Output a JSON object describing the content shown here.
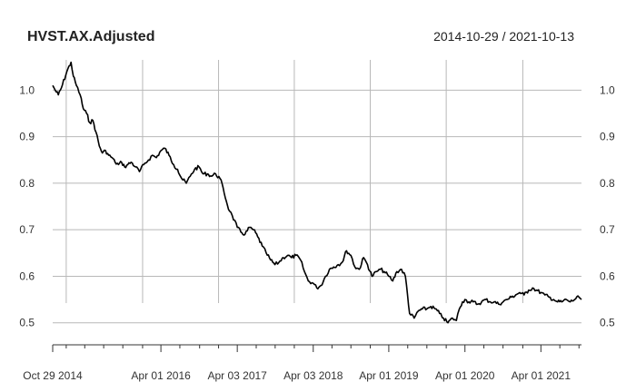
{
  "chart_data": {
    "type": "line",
    "title": "HVST.AX.Adjusted",
    "date_range": "2014-10-29 / 2021-10-13",
    "x_start": "2014-10-29",
    "x_end": "2021-10-13",
    "x_tick_labels": [
      {
        "date": "2014-10-29",
        "label": "Oct 29 2014"
      },
      {
        "date": "2016-04-01",
        "label": "Apr 01 2016"
      },
      {
        "date": "2017-04-03",
        "label": "Apr 03 2017"
      },
      {
        "date": "2018-04-03",
        "label": "Apr 03 2018"
      },
      {
        "date": "2019-04-01",
        "label": "Apr 01 2019"
      },
      {
        "date": "2020-04-01",
        "label": "Apr 01 2020"
      },
      {
        "date": "2021-04-01",
        "label": "Apr 01 2021"
      }
    ],
    "x_minor_ticks": [
      "2015-01-02",
      "2015-04-01",
      "2015-07-01",
      "2015-10-01",
      "2016-01-04",
      "2016-07-01",
      "2016-10-04",
      "2017-01-03",
      "2017-07-03",
      "2017-10-02",
      "2018-01-02",
      "2018-07-02",
      "2018-10-01",
      "2019-01-02",
      "2019-07-01",
      "2019-10-01",
      "2020-01-02",
      "2020-07-01",
      "2020-10-01",
      "2021-01-04",
      "2021-07-01",
      "2021-10-01"
    ],
    "x_grid": [
      "2015-01-02",
      "2016-01-04",
      "2017-01-03",
      "2018-01-02",
      "2019-01-02",
      "2020-01-02",
      "2021-01-04"
    ],
    "y_ticks": [
      "0.5",
      "0.6",
      "0.7",
      "0.8",
      "0.9",
      "1.0"
    ],
    "ylim": [
      0.48,
      1.065
    ],
    "grid": true,
    "series": [
      {
        "color": "#000000",
        "x": [
          "2014-10-29",
          "2014-11-10",
          "2014-11-25",
          "2014-12-10",
          "2015-01-05",
          "2015-01-25",
          "2015-02-05",
          "2015-02-20",
          "2015-03-10",
          "2015-03-25",
          "2015-04-10",
          "2015-04-25",
          "2015-05-10",
          "2015-05-25",
          "2015-06-10",
          "2015-06-25",
          "2015-07-10",
          "2015-07-25",
          "2015-08-10",
          "2015-08-25",
          "2015-09-10",
          "2015-09-25",
          "2015-10-10",
          "2015-10-25",
          "2015-11-10",
          "2015-12-01",
          "2015-12-20",
          "2016-01-10",
          "2016-02-01",
          "2016-02-20",
          "2016-03-10",
          "2016-04-01",
          "2016-04-20",
          "2016-05-10",
          "2016-06-01",
          "2016-06-20",
          "2016-07-10",
          "2016-08-01",
          "2016-08-20",
          "2016-09-10",
          "2016-10-01",
          "2016-10-20",
          "2016-11-10",
          "2016-12-01",
          "2016-12-20",
          "2017-01-10",
          "2017-01-25",
          "2017-02-10",
          "2017-02-25",
          "2017-03-10",
          "2017-04-03",
          "2017-04-20",
          "2017-05-10",
          "2017-06-01",
          "2017-06-20",
          "2017-07-10",
          "2017-08-01",
          "2017-08-20",
          "2017-09-10",
          "2017-10-01",
          "2017-10-20",
          "2017-11-10",
          "2017-12-01",
          "2017-12-20",
          "2018-01-10",
          "2018-02-01",
          "2018-02-20",
          "2018-03-10",
          "2018-04-03",
          "2018-04-20",
          "2018-05-10",
          "2018-06-01",
          "2018-06-20",
          "2018-07-10",
          "2018-08-01",
          "2018-08-20",
          "2018-09-10",
          "2018-10-01",
          "2018-10-20",
          "2018-11-10",
          "2018-12-01",
          "2018-12-20",
          "2019-01-10",
          "2019-02-01",
          "2019-02-20",
          "2019-03-10",
          "2019-04-01",
          "2019-04-20",
          "2019-05-10",
          "2019-06-01",
          "2019-06-20",
          "2019-07-10",
          "2019-08-01",
          "2019-08-20",
          "2019-09-10",
          "2019-10-01",
          "2019-10-20",
          "2019-11-10",
          "2019-12-01",
          "2019-12-20",
          "2020-01-10",
          "2020-02-01",
          "2020-02-20",
          "2020-03-05",
          "2020-03-20",
          "2020-04-01",
          "2020-04-20",
          "2020-05-10",
          "2020-06-01",
          "2020-06-20",
          "2020-07-10",
          "2020-08-01",
          "2020-08-20",
          "2020-09-10",
          "2020-10-01",
          "2020-10-20",
          "2020-11-10",
          "2020-12-01",
          "2020-12-20",
          "2021-01-10",
          "2021-02-01",
          "2021-02-20",
          "2021-03-10",
          "2021-04-01",
          "2021-04-20",
          "2021-05-10",
          "2021-06-01",
          "2021-06-20",
          "2021-07-10",
          "2021-08-01",
          "2021-08-20",
          "2021-09-10",
          "2021-10-01",
          "2021-10-13"
        ],
        "values": [
          1.01,
          1.0,
          0.99,
          1.005,
          1.04,
          1.06,
          1.03,
          1.01,
          0.99,
          0.96,
          0.95,
          0.93,
          0.935,
          0.91,
          0.88,
          0.865,
          0.87,
          0.86,
          0.855,
          0.845,
          0.84,
          0.845,
          0.835,
          0.84,
          0.845,
          0.835,
          0.825,
          0.84,
          0.85,
          0.86,
          0.855,
          0.87,
          0.875,
          0.86,
          0.84,
          0.83,
          0.81,
          0.8,
          0.815,
          0.83,
          0.835,
          0.82,
          0.82,
          0.815,
          0.82,
          0.81,
          0.79,
          0.76,
          0.74,
          0.73,
          0.705,
          0.695,
          0.69,
          0.705,
          0.7,
          0.685,
          0.665,
          0.65,
          0.635,
          0.625,
          0.63,
          0.64,
          0.645,
          0.64,
          0.645,
          0.635,
          0.61,
          0.59,
          0.585,
          0.575,
          0.58,
          0.6,
          0.615,
          0.62,
          0.625,
          0.63,
          0.655,
          0.645,
          0.62,
          0.615,
          0.64,
          0.625,
          0.6,
          0.61,
          0.615,
          0.61,
          0.6,
          0.59,
          0.61,
          0.615,
          0.6,
          0.52,
          0.51,
          0.525,
          0.53,
          0.53,
          0.535,
          0.53,
          0.52,
          0.51,
          0.5,
          0.51,
          0.505,
          0.53,
          0.545,
          0.55,
          0.545,
          0.545,
          0.54,
          0.545,
          0.55,
          0.545,
          0.545,
          0.54,
          0.545,
          0.55,
          0.555,
          0.56,
          0.565,
          0.56,
          0.57,
          0.575,
          0.57,
          0.565,
          0.56,
          0.555,
          0.55,
          0.545,
          0.545,
          0.55,
          0.545,
          0.55,
          0.555,
          0.55
        ]
      }
    ]
  }
}
